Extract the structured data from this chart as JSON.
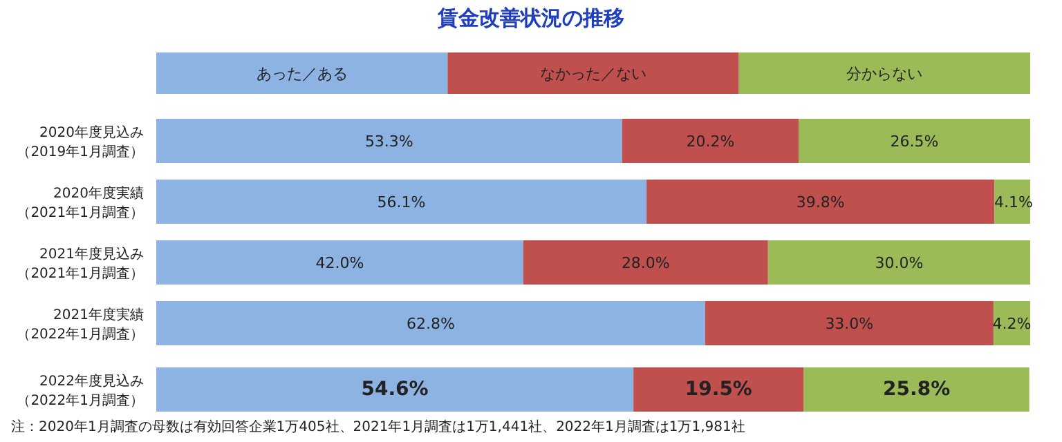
{
  "chart_data": {
    "type": "bar",
    "orientation": "horizontal",
    "stacked": true,
    "title": "賃金改善状況の推移",
    "categories": [
      "2020年度見込み（2019年1月調査）",
      "2020年度実績（2021年1月調査）",
      "2021年度見込み（2021年1月調査）",
      "2021年度実績（2022年1月調査）",
      "2022年度見込み（2022年1月調査）"
    ],
    "series": [
      {
        "name": "あった／ある",
        "color": "#8db3e2",
        "values": [
          53.3,
          56.1,
          42.0,
          62.8,
          54.6
        ],
        "value_labels": [
          "53.3%",
          "56.1%",
          "42.0%",
          "62.8%",
          "54.6%"
        ]
      },
      {
        "name": "なかった／ない",
        "color": "#c0504d",
        "values": [
          20.2,
          39.8,
          28.0,
          33.0,
          19.5
        ],
        "value_labels": [
          "20.2%",
          "39.8%",
          "28.0%",
          "33.0%",
          "19.5%"
        ]
      },
      {
        "name": "分からない",
        "color": "#9bbb59",
        "values": [
          26.5,
          4.1,
          30.0,
          4.2,
          25.8
        ],
        "value_labels": [
          "26.5%",
          "4.1%",
          "30.0%",
          "4.2%",
          "25.8%"
        ]
      }
    ],
    "legend": "top",
    "annotations": [
      "注：2020年1月調査の母数は有効回答企業1万405社、2021年1月調査は1万1,441社、2022年1月調査は1万1,981社"
    ]
  }
}
